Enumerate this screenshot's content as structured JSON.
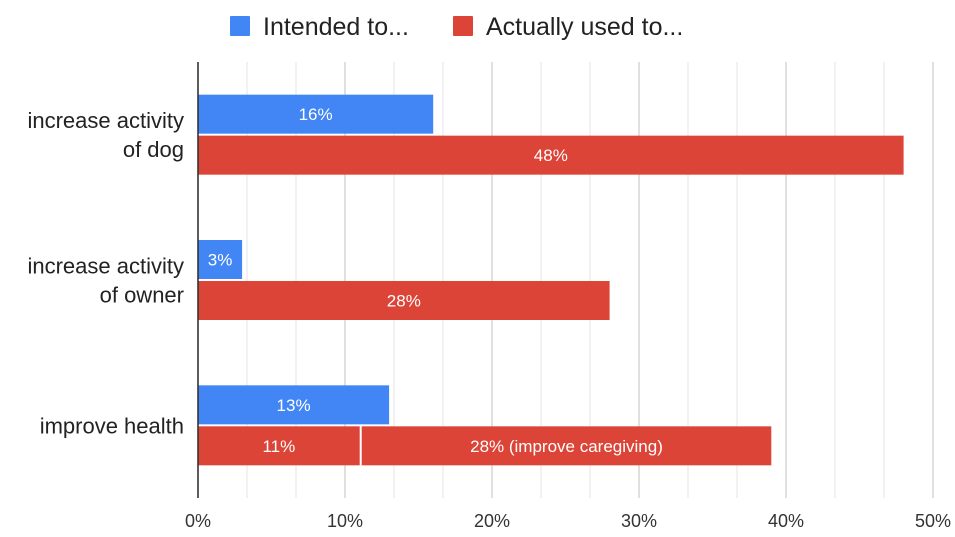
{
  "chart_data": {
    "type": "bar",
    "orientation": "horizontal",
    "categories": [
      [
        "increase activity",
        "of dog"
      ],
      [
        "increase activity",
        "of owner"
      ],
      [
        "improve health"
      ]
    ],
    "series": [
      {
        "name": "Intended to...",
        "color": "#4285f4",
        "values": [
          16,
          3,
          13
        ],
        "labels": [
          "16%",
          "3%",
          "13%"
        ]
      },
      {
        "name": "Actually used to...",
        "color": "#db4437",
        "values": [
          48,
          28,
          11
        ],
        "labels": [
          "48%",
          "28%",
          "11%"
        ]
      }
    ],
    "stacked_segments": [
      {
        "category_index": 2,
        "series_index": 1,
        "start": 11,
        "value": 28,
        "label": "28% (improve caregiving)",
        "color": "#db4437"
      }
    ],
    "xlim": [
      0,
      50
    ],
    "xticks": [
      0,
      10,
      20,
      30,
      40,
      50
    ],
    "xtick_labels": [
      "0%",
      "10%",
      "20%",
      "30%",
      "40%",
      "50%"
    ],
    "minor_gridlines": true,
    "grid": true,
    "legend_position": "top-center",
    "title": "",
    "xlabel": "",
    "ylabel": ""
  }
}
